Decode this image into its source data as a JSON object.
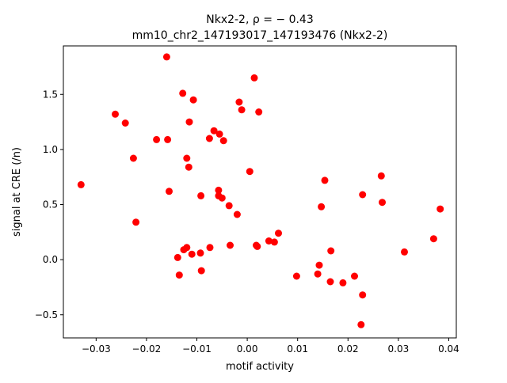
{
  "chart_data": {
    "type": "scatter",
    "title_line1": "Nkx2-2, ρ = − 0.43",
    "title_line2": "mm10_chr2_147193017_147193476 (Nkx2-2)",
    "xlabel": "motif activity",
    "ylabel": "signal at CRE (/n)",
    "xlim": [
      -0.0365,
      0.0415
    ],
    "ylim": [
      -0.71,
      1.94
    ],
    "xticks": [
      -0.03,
      -0.02,
      -0.01,
      0.0,
      0.01,
      0.02,
      0.03,
      0.04
    ],
    "xtick_labels": [
      "−0.03",
      "−0.02",
      "−0.01",
      "0.00",
      "0.01",
      "0.02",
      "0.03",
      "0.04"
    ],
    "yticks": [
      -0.5,
      0.0,
      0.5,
      1.0,
      1.5
    ],
    "ytick_labels": [
      "−0.5",
      "0.0",
      "0.5",
      "1.0",
      "1.5"
    ],
    "grid": false,
    "marker_color": "#ff0000",
    "points": [
      {
        "x": -0.033,
        "y": 0.68
      },
      {
        "x": -0.0262,
        "y": 1.32
      },
      {
        "x": -0.0242,
        "y": 1.24
      },
      {
        "x": -0.0226,
        "y": 0.92
      },
      {
        "x": -0.0221,
        "y": 0.34
      },
      {
        "x": -0.018,
        "y": 1.09
      },
      {
        "x": -0.016,
        "y": 1.84
      },
      {
        "x": -0.0158,
        "y": 1.09
      },
      {
        "x": -0.0155,
        "y": 0.62
      },
      {
        "x": -0.0138,
        "y": 0.02
      },
      {
        "x": -0.0135,
        "y": -0.14
      },
      {
        "x": -0.0128,
        "y": 1.51
      },
      {
        "x": -0.0126,
        "y": 0.09
      },
      {
        "x": -0.012,
        "y": 0.92
      },
      {
        "x": -0.012,
        "y": 0.11
      },
      {
        "x": -0.0116,
        "y": 0.84
      },
      {
        "x": -0.0115,
        "y": 1.25
      },
      {
        "x": -0.011,
        "y": 0.05
      },
      {
        "x": -0.0107,
        "y": 1.45
      },
      {
        "x": -0.0093,
        "y": 0.06
      },
      {
        "x": -0.0092,
        "y": 0.58
      },
      {
        "x": -0.0091,
        "y": -0.1
      },
      {
        "x": -0.0075,
        "y": 1.1
      },
      {
        "x": -0.0074,
        "y": 0.11
      },
      {
        "x": -0.0066,
        "y": 1.17
      },
      {
        "x": -0.0057,
        "y": 0.63
      },
      {
        "x": -0.0057,
        "y": 0.58
      },
      {
        "x": -0.0055,
        "y": 1.14
      },
      {
        "x": -0.005,
        "y": 0.56
      },
      {
        "x": -0.0047,
        "y": 1.08
      },
      {
        "x": -0.0036,
        "y": 0.49
      },
      {
        "x": -0.0034,
        "y": 0.13
      },
      {
        "x": -0.002,
        "y": 0.41
      },
      {
        "x": -0.0016,
        "y": 1.43
      },
      {
        "x": -0.0011,
        "y": 1.36
      },
      {
        "x": 0.0005,
        "y": 0.8
      },
      {
        "x": 0.0014,
        "y": 1.65
      },
      {
        "x": 0.0018,
        "y": 0.13
      },
      {
        "x": 0.002,
        "y": 0.12
      },
      {
        "x": 0.0023,
        "y": 1.34
      },
      {
        "x": 0.0043,
        "y": 0.17
      },
      {
        "x": 0.0054,
        "y": 0.16
      },
      {
        "x": 0.0062,
        "y": 0.24
      },
      {
        "x": 0.0098,
        "y": -0.15
      },
      {
        "x": 0.014,
        "y": -0.13
      },
      {
        "x": 0.0143,
        "y": -0.05
      },
      {
        "x": 0.0147,
        "y": 0.48
      },
      {
        "x": 0.0154,
        "y": 0.72
      },
      {
        "x": 0.0165,
        "y": -0.2
      },
      {
        "x": 0.0166,
        "y": 0.08
      },
      {
        "x": 0.019,
        "y": -0.21
      },
      {
        "x": 0.0213,
        "y": -0.15
      },
      {
        "x": 0.0226,
        "y": -0.59
      },
      {
        "x": 0.0229,
        "y": 0.59
      },
      {
        "x": 0.0229,
        "y": -0.32
      },
      {
        "x": 0.0266,
        "y": 0.76
      },
      {
        "x": 0.0268,
        "y": 0.52
      },
      {
        "x": 0.0312,
        "y": 0.07
      },
      {
        "x": 0.037,
        "y": 0.19
      },
      {
        "x": 0.0383,
        "y": 0.46
      }
    ]
  }
}
